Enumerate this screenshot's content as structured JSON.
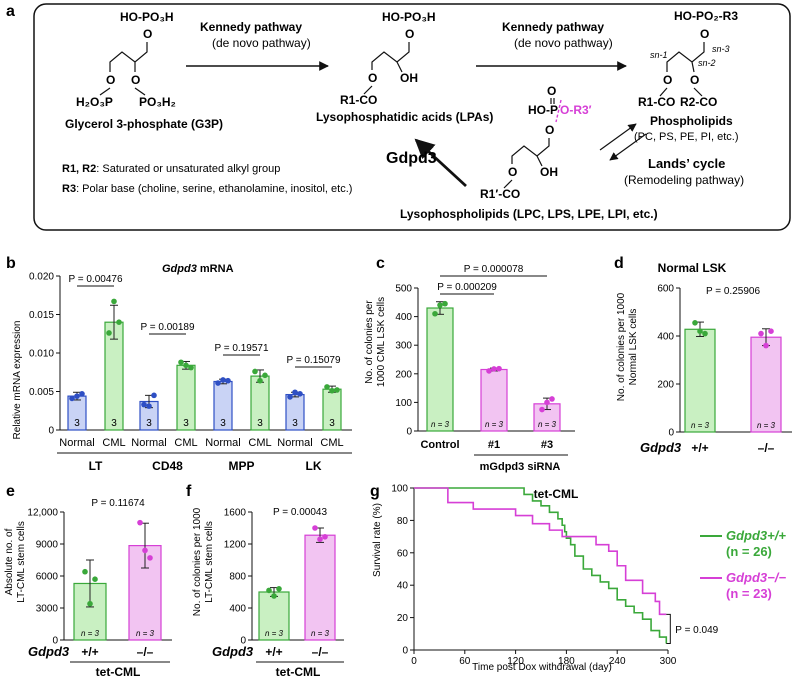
{
  "panel_labels": {
    "a": "a",
    "b": "b",
    "c": "c",
    "d": "d",
    "e": "e",
    "f": "f",
    "g": "g"
  },
  "panel_a": {
    "kennedy1": "Kennedy pathway",
    "denovo1": "(de novo pathway)",
    "kennedy2": "Kennedy pathway",
    "denovo2": "(de novo pathway)",
    "g3p_top": "HO-PO₃H",
    "g3p_bottom": "H₂O₃P",
    "g3p_bottom_right": "PO₃H₂",
    "g3p_name": "Glycerol 3-phosphate (G3P)",
    "lpa_top": "HO-PO₃H",
    "lpa_oh": "OH",
    "lpa_r1": "R1-CO",
    "lpa_name": "Lysophosphatidic acids (LPAs)",
    "pl_top": "HO-PO₂-R3",
    "pl_sn1": "sn-1",
    "pl_sn2": "sn-2",
    "pl_sn3": "sn-3",
    "pl_r1": "R1-CO",
    "pl_r2": "R2-CO",
    "pl_name": "Phospholipids",
    "pl_sub": "(PC, PS, PE, PI, etc.)",
    "lyso_ho": "HO-P",
    "lyso_or3": "O-R3′",
    "lyso_oh": "OH",
    "lyso_r1": "R1′-CO",
    "lyso_name": "Lysophospholipids (LPC, LPS, LPE, LPI, etc.)",
    "gdpd3": "Gdpd3",
    "lands": "Lands’ cycle",
    "lands_sub": "(Remodeling pathway)",
    "note_r12_key": "R1, R2",
    "note_r12": ": Saturated or unsaturated alkyl group",
    "note_r3_key": "R3",
    "note_r3": ": Polar base (choline, serine, ethanolamine, inositol, etc.)"
  },
  "panel_b_text": {
    "gene": "Gdpd3",
    "title_rest": " mRNA",
    "ylabel": "Relative mRNA expression",
    "groups": [
      "LT",
      "CD48",
      "MPP",
      "LK"
    ],
    "sub": [
      "Normal",
      "CML"
    ],
    "pvals": [
      "P = 0.00476",
      "P = 0.00189",
      "P = 0.19571",
      "P = 0.15079"
    ],
    "n": "3"
  },
  "panel_c_text": {
    "ylabel": [
      "No. of colonies per",
      "1000 CML LSK cells"
    ],
    "cats": [
      "Control",
      "#1",
      "#3"
    ],
    "group2": "mGdpd3  siRNA",
    "pvals": [
      "P = 0.000209",
      "P = 0.000078"
    ],
    "n": "n = 3"
  },
  "panel_d_text": {
    "title": "Normal LSK",
    "ylabel": [
      "No. of colonies per 1000",
      "Normal  LSK cells"
    ],
    "gene": "Gdpd3",
    "cats": [
      "+/+",
      "–/–"
    ],
    "pval": "P = 0.25906",
    "n": "n = 3"
  },
  "panel_e_text": {
    "ylabel": [
      "Absolute no. of",
      "LT-CML stem cells"
    ],
    "gene": "Gdpd3",
    "cats": [
      "+/+",
      "–/–"
    ],
    "group": "tet-CML",
    "pval": "P = 0.11674",
    "n": "n = 3"
  },
  "panel_f_text": {
    "ylabel": [
      "No. of colonies per 1000",
      "LT-CML stem cells"
    ],
    "gene": "Gdpd3",
    "cats": [
      "+/+",
      "–/–"
    ],
    "group": "tet-CML",
    "pval": "P = 0.00043",
    "n": "n = 3"
  },
  "panel_g_text": {
    "title": "tet-CML",
    "ylabel": "Survival rate (%)",
    "xlabel": "Time post Dox withdrawal (day)",
    "legend_wt": "Gdpd3+/+",
    "legend_wt_n": "(n = 26)",
    "legend_ko": "Gdpd3−/−",
    "legend_ko_n": "(n = 23)",
    "pval": "P = 0.049"
  },
  "colors": {
    "blue": "#2e4fc4",
    "green": "#3aa83a",
    "magenta": "#d63fd6",
    "blue_fill": "#c9d3f5",
    "green_fill": "#c9f0c2",
    "magenta_fill": "#f2c4f2"
  },
  "chart_data": [
    {
      "id": "b",
      "type": "bar",
      "title": "Gdpd3 mRNA",
      "ylabel": "Relative mRNA expression",
      "ylim": [
        0,
        0.02
      ],
      "yticks": [
        0,
        0.005,
        0.01,
        0.015,
        0.02
      ],
      "ytick_labels": [
        "0",
        "0.005",
        "0.010",
        "0.015",
        "0.020"
      ],
      "categories": [
        "LT Normal",
        "LT CML",
        "CD48 Normal",
        "CD48 CML",
        "MPP Normal",
        "MPP CML",
        "LK Normal",
        "LK CML"
      ],
      "values": [
        0.0044,
        0.014,
        0.0037,
        0.0084,
        0.0063,
        0.007,
        0.0046,
        0.0053
      ],
      "errors": [
        0.0005,
        0.0022,
        0.0008,
        0.0005,
        0.0003,
        0.0008,
        0.0003,
        0.0004
      ],
      "points": [
        [
          0.0041,
          0.0044,
          0.0047
        ],
        [
          0.0126,
          0.0167,
          0.014
        ],
        [
          0.0033,
          0.0031,
          0.0045
        ],
        [
          0.0088,
          0.0084,
          0.0081
        ],
        [
          0.0061,
          0.0065,
          0.0064
        ],
        [
          0.0076,
          0.0064,
          0.0071
        ],
        [
          0.0043,
          0.0049,
          0.0047
        ],
        [
          0.0056,
          0.0051,
          0.0052
        ]
      ]
    },
    {
      "id": "c",
      "type": "bar",
      "ylim": [
        0,
        500
      ],
      "yticks": [
        0,
        100,
        200,
        300,
        400,
        500
      ],
      "categories": [
        "Control",
        "#1",
        "#3"
      ],
      "values": [
        430,
        215,
        95
      ],
      "errors": [
        22,
        5,
        20
      ],
      "points": [
        [
          410,
          440,
          445
        ],
        [
          210,
          217,
          218
        ],
        [
          75,
          100,
          112
        ]
      ]
    },
    {
      "id": "d",
      "type": "bar",
      "title": "Normal LSK",
      "ylim": [
        0,
        600
      ],
      "yticks": [
        0,
        200,
        400,
        600
      ],
      "categories": [
        "+/+",
        "–/–"
      ],
      "values": [
        428,
        395
      ],
      "errors": [
        30,
        35
      ],
      "points": [
        [
          455,
          420,
          410
        ],
        [
          410,
          360,
          420
        ]
      ]
    },
    {
      "id": "e",
      "type": "bar",
      "ylim": [
        0,
        12000
      ],
      "yticks": [
        0,
        3000,
        6000,
        9000,
        12000
      ],
      "ytick_labels": [
        "0",
        "3000",
        "6000",
        "9000",
        "12,000"
      ],
      "categories": [
        "+/+",
        "–/–"
      ],
      "values": [
        5300,
        8850
      ],
      "errors": [
        2200,
        2100
      ],
      "points": [
        [
          6400,
          3400,
          5700
        ],
        [
          11000,
          8400,
          7700
        ]
      ]
    },
    {
      "id": "f",
      "type": "bar",
      "ylim": [
        0,
        1600
      ],
      "yticks": [
        0,
        400,
        800,
        1200,
        1600
      ],
      "categories": [
        "+/+",
        "–/–"
      ],
      "values": [
        600,
        1310
      ],
      "errors": [
        55,
        90
      ],
      "points": [
        [
          620,
          550,
          640
        ],
        [
          1400,
          1260,
          1290
        ]
      ]
    },
    {
      "id": "g",
      "type": "line",
      "title": "tet-CML",
      "xlabel": "Time post Dox withdrawal (day)",
      "ylabel": "Survival rate (%)",
      "xlim": [
        0,
        300
      ],
      "ylim": [
        0,
        100
      ],
      "xticks": [
        0,
        60,
        120,
        180,
        240,
        300
      ],
      "yticks": [
        0,
        20,
        40,
        60,
        80,
        100
      ],
      "series": [
        {
          "name": "Gdpd3+/+",
          "color": "#3aa83a",
          "x": [
            0,
            60,
            130,
            140,
            150,
            160,
            170,
            175,
            178,
            180,
            185,
            190,
            200,
            210,
            220,
            230,
            240,
            250,
            260,
            270,
            280,
            290,
            298
          ],
          "y": [
            100,
            100,
            96,
            92,
            89,
            85,
            81,
            77,
            73,
            69,
            65,
            58,
            50,
            46,
            42,
            38,
            31,
            27,
            23,
            19,
            12,
            8,
            4
          ]
        },
        {
          "name": "Gdpd3−/−",
          "color": "#d63fd6",
          "x": [
            0,
            30,
            40,
            70,
            120,
            140,
            160,
            175,
            200,
            215,
            230,
            240,
            250,
            270,
            285,
            290,
            298
          ],
          "y": [
            100,
            100,
            91,
            87,
            83,
            78,
            74,
            70,
            70,
            65,
            61,
            52,
            43,
            35,
            30,
            22,
            22
          ]
        }
      ]
    }
  ]
}
